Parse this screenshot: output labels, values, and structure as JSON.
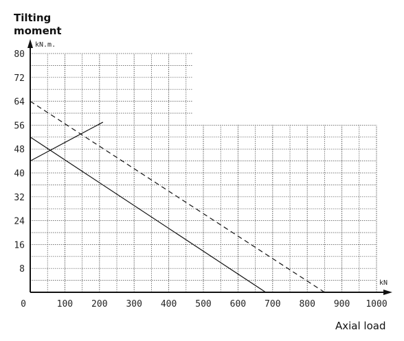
{
  "chart_data": {
    "type": "line",
    "title": "Tilting moment",
    "ylabel_line1": "Tilting",
    "ylabel_line2": "moment",
    "y_unit": "kN.m.",
    "xlabel": "Axial load",
    "x_unit": "kN",
    "xlim": [
      0,
      1000
    ],
    "ylim": [
      0,
      80
    ],
    "xticks": [
      0,
      100,
      200,
      300,
      400,
      500,
      600,
      700,
      800,
      900,
      1000
    ],
    "yticks": [
      8,
      16,
      24,
      32,
      40,
      48,
      56,
      64,
      72,
      80
    ],
    "grid": true,
    "series": [
      {
        "style": "dashed",
        "points": [
          [
            0,
            64
          ],
          [
            850,
            0
          ]
        ]
      },
      {
        "style": "solid",
        "points": [
          [
            0,
            52
          ],
          [
            680,
            0
          ]
        ]
      },
      {
        "style": "solid",
        "points": [
          [
            0,
            44
          ],
          [
            210,
            57
          ]
        ]
      }
    ]
  }
}
